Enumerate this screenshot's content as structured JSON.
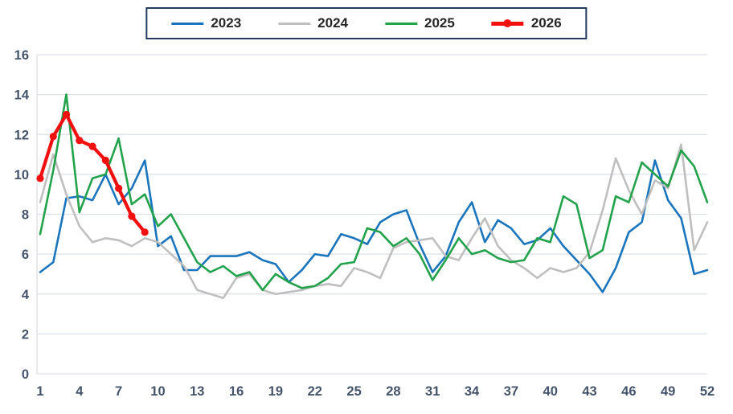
{
  "chart_data": {
    "type": "line",
    "title": "",
    "xlabel": "",
    "ylabel": "",
    "x_range": [
      1,
      52
    ],
    "ylim": [
      0,
      16
    ],
    "yticks": [
      0,
      2,
      4,
      6,
      8,
      10,
      12,
      14,
      16
    ],
    "xticks": [
      1,
      4,
      7,
      10,
      13,
      16,
      19,
      22,
      25,
      28,
      31,
      34,
      37,
      40,
      43,
      46,
      49,
      52
    ],
    "grid": true,
    "legend_position": "top-center",
    "axis_text_color": "#44546a",
    "grid_color": "#dcdfe4",
    "legend_border_color": "#233a60",
    "series": [
      {
        "name": "2023",
        "color": "#1b75bc",
        "stroke_width": 2.6,
        "marker": false,
        "values": [
          5.1,
          5.6,
          8.8,
          8.9,
          8.7,
          10.0,
          8.5,
          9.3,
          10.7,
          6.4,
          6.9,
          5.2,
          5.2,
          5.9,
          5.9,
          5.9,
          6.1,
          5.7,
          5.5,
          4.6,
          5.2,
          6.0,
          5.9,
          7.0,
          6.8,
          6.5,
          7.6,
          8.0,
          8.2,
          6.5,
          5.1,
          5.9,
          7.6,
          8.6,
          6.6,
          7.7,
          7.3,
          6.5,
          6.7,
          7.3,
          6.4,
          5.7,
          5.0,
          4.1,
          5.3,
          7.1,
          7.6,
          10.7,
          8.7,
          7.8,
          5.0,
          5.2
        ]
      },
      {
        "name": "2024",
        "color": "#bfbfbf",
        "stroke_width": 2.6,
        "marker": false,
        "values": [
          8.6,
          11.0,
          9.0,
          7.4,
          6.6,
          6.8,
          6.7,
          6.4,
          6.8,
          6.6,
          6.0,
          5.4,
          4.2,
          4.0,
          3.8,
          4.8,
          5.0,
          4.2,
          4.0,
          4.1,
          4.2,
          4.4,
          4.5,
          4.4,
          5.3,
          5.1,
          4.8,
          6.3,
          6.6,
          6.7,
          6.8,
          5.9,
          5.7,
          6.8,
          7.8,
          6.4,
          5.7,
          5.3,
          4.8,
          5.3,
          5.1,
          5.3,
          6.1,
          8.2,
          10.8,
          9.2,
          8.0,
          9.7,
          9.3,
          11.5,
          6.2,
          7.6
        ]
      },
      {
        "name": "2025",
        "color": "#21a24b",
        "stroke_width": 2.6,
        "marker": false,
        "values": [
          7.0,
          10.2,
          14.0,
          8.1,
          9.8,
          10.0,
          11.8,
          8.5,
          9.0,
          7.4,
          8.0,
          6.8,
          5.6,
          5.1,
          5.4,
          4.9,
          5.1,
          4.2,
          5.0,
          4.6,
          4.3,
          4.4,
          4.8,
          5.5,
          5.6,
          7.3,
          7.1,
          6.4,
          6.8,
          6.0,
          4.7,
          5.7,
          6.8,
          6.0,
          6.2,
          5.8,
          5.6,
          5.7,
          6.8,
          6.6,
          8.9,
          8.5,
          5.8,
          6.2,
          8.9,
          8.6,
          10.6,
          10.0,
          9.4,
          11.2,
          10.4,
          8.6
        ]
      },
      {
        "name": "2026",
        "color": "#f20f0f",
        "stroke_width": 4.2,
        "marker": true,
        "marker_radius": 4.6,
        "values": [
          9.8,
          11.9,
          13.0,
          11.7,
          11.4,
          10.7,
          9.3,
          7.9,
          7.1
        ]
      }
    ]
  },
  "legend": {
    "items": [
      {
        "label": "2023"
      },
      {
        "label": "2024"
      },
      {
        "label": "2025"
      },
      {
        "label": "2026"
      }
    ]
  }
}
